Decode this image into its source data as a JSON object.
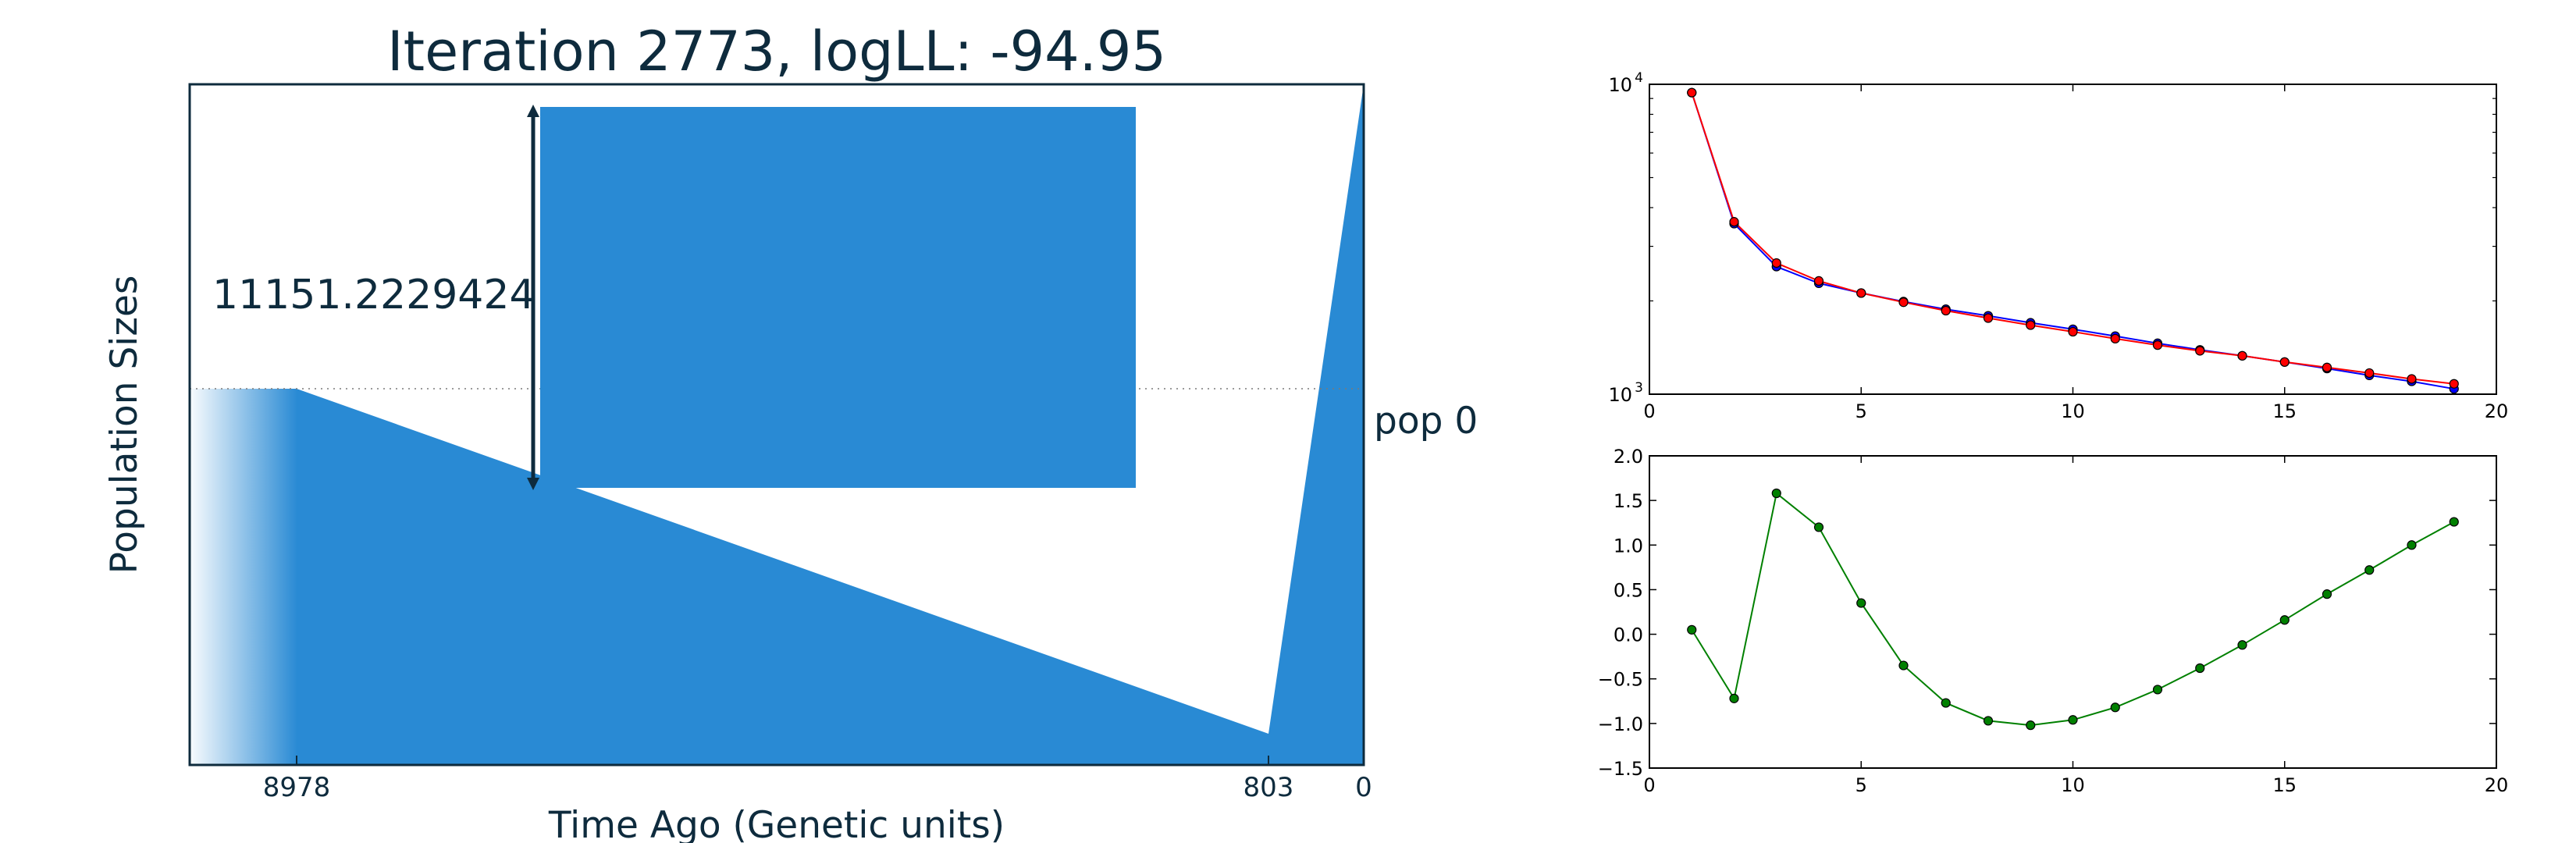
{
  "demography": {
    "title": "Iteration 2773, logLL:      -94.95",
    "xlabel": "Time Ago (Genetic units)",
    "ylabel": "Population Sizes",
    "scale_label": "11151.2229424",
    "pop_label": "pop 0",
    "x_ticks": [
      "8978",
      "803",
      "0"
    ],
    "fill_color": "#298ad4",
    "text_color": "#0e2b3d"
  },
  "chart_data": [
    {
      "type": "line",
      "yscale": "log",
      "xlim": [
        0,
        20
      ],
      "ylim": [
        1000,
        10000
      ],
      "x_ticks": [
        "0",
        "5",
        "10",
        "15",
        "20"
      ],
      "y_ticks": [
        {
          "base": "10",
          "exp": "3",
          "value": 1000
        },
        {
          "base": "10",
          "exp": "4",
          "value": 10000
        }
      ],
      "x": [
        1,
        2,
        3,
        4,
        5,
        6,
        7,
        8,
        9,
        10,
        11,
        12,
        13,
        14,
        15,
        16,
        17,
        18,
        19
      ],
      "series": [
        {
          "color": "#0000ff",
          "values": [
            9400,
            3550,
            2580,
            2280,
            2120,
            1990,
            1880,
            1790,
            1700,
            1620,
            1540,
            1460,
            1390,
            1330,
            1270,
            1210,
            1150,
            1100,
            1040
          ]
        },
        {
          "color": "#ff0000",
          "values": [
            9400,
            3600,
            2650,
            2320,
            2120,
            1980,
            1860,
            1760,
            1670,
            1590,
            1510,
            1440,
            1380,
            1330,
            1270,
            1220,
            1170,
            1120,
            1080
          ]
        }
      ]
    },
    {
      "type": "line",
      "xlim": [
        0,
        20
      ],
      "ylim": [
        -1.5,
        2.0
      ],
      "x_ticks": [
        "0",
        "5",
        "10",
        "15",
        "20"
      ],
      "y_ticks": [
        "2.0",
        "1.5",
        "1.0",
        "0.5",
        "0.0",
        "−0.5",
        "−1.0",
        "−1.5"
      ],
      "x": [
        1,
        2,
        3,
        4,
        5,
        6,
        7,
        8,
        9,
        10,
        11,
        12,
        13,
        14,
        15,
        16,
        17,
        18,
        19
      ],
      "series": [
        {
          "color": "#008000",
          "values": [
            0.05,
            -0.72,
            1.58,
            1.2,
            0.35,
            -0.35,
            -0.77,
            -0.97,
            -1.02,
            -0.96,
            -0.82,
            -0.62,
            -0.38,
            -0.12,
            0.16,
            0.45,
            0.72,
            1.0,
            1.26
          ]
        }
      ]
    }
  ]
}
